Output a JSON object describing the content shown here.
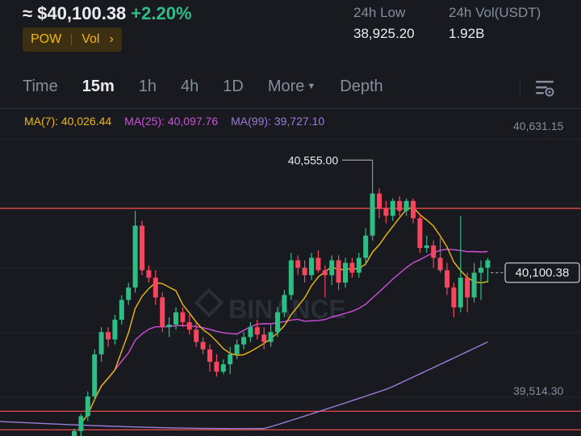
{
  "header": {
    "price": "≈ $40,100.38",
    "change": "+2.20%",
    "tags": [
      "POW",
      "Vol"
    ],
    "tags_chevron": "›",
    "low_label": "24h Low",
    "low_value": "38,925.20",
    "vol_label": "24h Vol(USDT)",
    "vol_value": "1.92B"
  },
  "tabs": [
    {
      "label": "Time",
      "active": false
    },
    {
      "label": "15m",
      "active": true
    },
    {
      "label": "1h",
      "active": false
    },
    {
      "label": "4h",
      "active": false
    },
    {
      "label": "1D",
      "active": false
    },
    {
      "label": "More",
      "active": false
    },
    {
      "label": "Depth",
      "active": false
    }
  ],
  "tool_icon": "chart-settings-icon",
  "ma": {
    "ma7": {
      "label": "MA(7): 40,026.44",
      "color": "#f0b90b"
    },
    "ma25": {
      "label": "MA(25): 40,097.76",
      "color": "#d04fdc"
    },
    "ma99": {
      "label": "MA(99): 39,727.10",
      "color": "#9d7bd8"
    }
  },
  "axis": {
    "top_label": "40,631.15",
    "bottom_label": "39,514.30",
    "current_price_label": "40,100.38",
    "high_marker_label": "40,555.00"
  },
  "watermark": "BINANCE",
  "colors": {
    "up": "#2ebd85",
    "down": "#f6465d",
    "accent": "#f0b90b",
    "level_line": "#e84a4a"
  },
  "chart_data": {
    "type": "candlestick",
    "interval": "15m",
    "ylim": [
      39440,
      40680
    ],
    "level_lines": [
      40360,
      39540,
      39465
    ],
    "candles": [
      [
        39390,
        39460,
        39360,
        39470
      ],
      [
        39460,
        39520,
        39440,
        39530
      ],
      [
        39520,
        39600,
        39500,
        39620
      ],
      [
        39600,
        39770,
        39580,
        39790
      ],
      [
        39770,
        39860,
        39740,
        39880
      ],
      [
        39860,
        39830,
        39800,
        39880
      ],
      [
        39830,
        39910,
        39810,
        39930
      ],
      [
        39910,
        39990,
        39890,
        40010
      ],
      [
        39990,
        40040,
        39970,
        40060
      ],
      [
        40040,
        40290,
        40020,
        40350
      ],
      [
        40290,
        40110,
        40090,
        40310
      ],
      [
        40110,
        40080,
        40060,
        40130
      ],
      [
        40080,
        40000,
        39970,
        40110
      ],
      [
        40000,
        39880,
        39860,
        40020
      ],
      [
        39880,
        39890,
        39840,
        39920
      ],
      [
        39890,
        39940,
        39870,
        39960
      ],
      [
        39940,
        39900,
        39880,
        39960
      ],
      [
        39900,
        39870,
        39850,
        39930
      ],
      [
        39870,
        39820,
        39800,
        39900
      ],
      [
        39820,
        39790,
        39770,
        39840
      ],
      [
        39790,
        39740,
        39700,
        39810
      ],
      [
        39740,
        39700,
        39680,
        39770
      ],
      [
        39700,
        39730,
        39690,
        39750
      ],
      [
        39730,
        39770,
        39690,
        39800
      ],
      [
        39770,
        39810,
        39750,
        39830
      ],
      [
        39810,
        39840,
        39790,
        39860
      ],
      [
        39840,
        39880,
        39820,
        39900
      ],
      [
        39880,
        39850,
        39830,
        39910
      ],
      [
        39850,
        39820,
        39790,
        39880
      ],
      [
        39820,
        39860,
        39800,
        39890
      ],
      [
        39860,
        39940,
        39840,
        39960
      ],
      [
        39940,
        40010,
        39920,
        40030
      ],
      [
        40010,
        40150,
        39990,
        40180
      ],
      [
        40150,
        40120,
        40090,
        40170
      ],
      [
        40120,
        40090,
        40060,
        40150
      ],
      [
        40090,
        40160,
        40070,
        40180
      ],
      [
        40160,
        40110,
        40100,
        40190
      ],
      [
        40110,
        40090,
        40000,
        40130
      ],
      [
        40090,
        40150,
        40050,
        40170
      ],
      [
        40150,
        40060,
        40030,
        40170
      ],
      [
        40060,
        40140,
        40040,
        40160
      ],
      [
        40140,
        40100,
        40080,
        40160
      ],
      [
        40100,
        40160,
        40080,
        40180
      ],
      [
        40160,
        40250,
        40130,
        40280
      ],
      [
        40250,
        40420,
        40230,
        40555
      ],
      [
        40420,
        40360,
        40320,
        40440
      ],
      [
        40360,
        40330,
        40300,
        40390
      ],
      [
        40330,
        40390,
        40310,
        40400
      ],
      [
        40390,
        40350,
        40330,
        40410
      ],
      [
        40350,
        40390,
        40330,
        40400
      ],
      [
        40390,
        40320,
        40300,
        40400
      ],
      [
        40320,
        40200,
        40180,
        40340
      ],
      [
        40200,
        40210,
        40180,
        40250
      ],
      [
        40210,
        40160,
        40120,
        40230
      ],
      [
        40160,
        40110,
        40100,
        40240
      ],
      [
        40110,
        40040,
        40010,
        40140
      ],
      [
        40040,
        39960,
        39920,
        40060
      ],
      [
        39960,
        40080,
        39940,
        40330
      ],
      [
        40080,
        40000,
        39940,
        40100
      ],
      [
        40000,
        40100,
        39980,
        40140
      ],
      [
        40100,
        40120,
        39990,
        40150
      ],
      [
        40120,
        40150,
        40060,
        40160
      ]
    ]
  }
}
